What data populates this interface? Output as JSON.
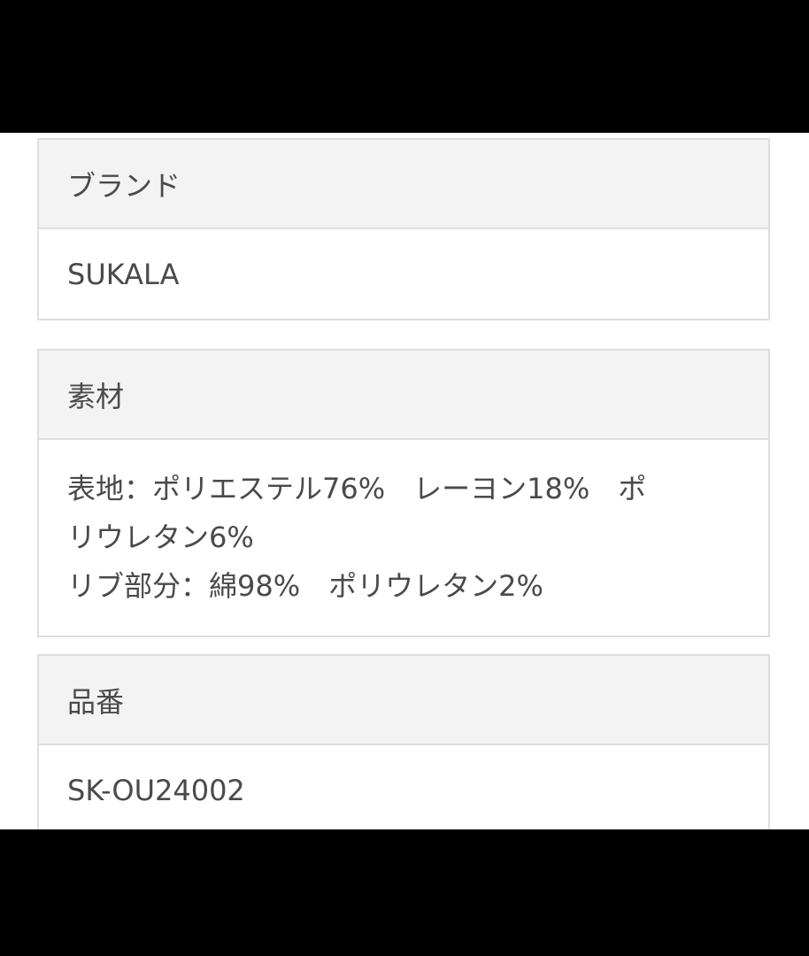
{
  "sections": [
    {
      "label": "ブランド",
      "value_lines": [
        "SUKALA"
      ]
    },
    {
      "label": "素材",
      "value_lines": [
        "表地：ポリエステル76%　レーヨン18%　ポ",
        "リウレタン6%",
        "リブ部分：綿98%　ポリウレタン2%"
      ]
    },
    {
      "label": "品番",
      "value_lines": [
        "SK-OU24002"
      ]
    }
  ]
}
